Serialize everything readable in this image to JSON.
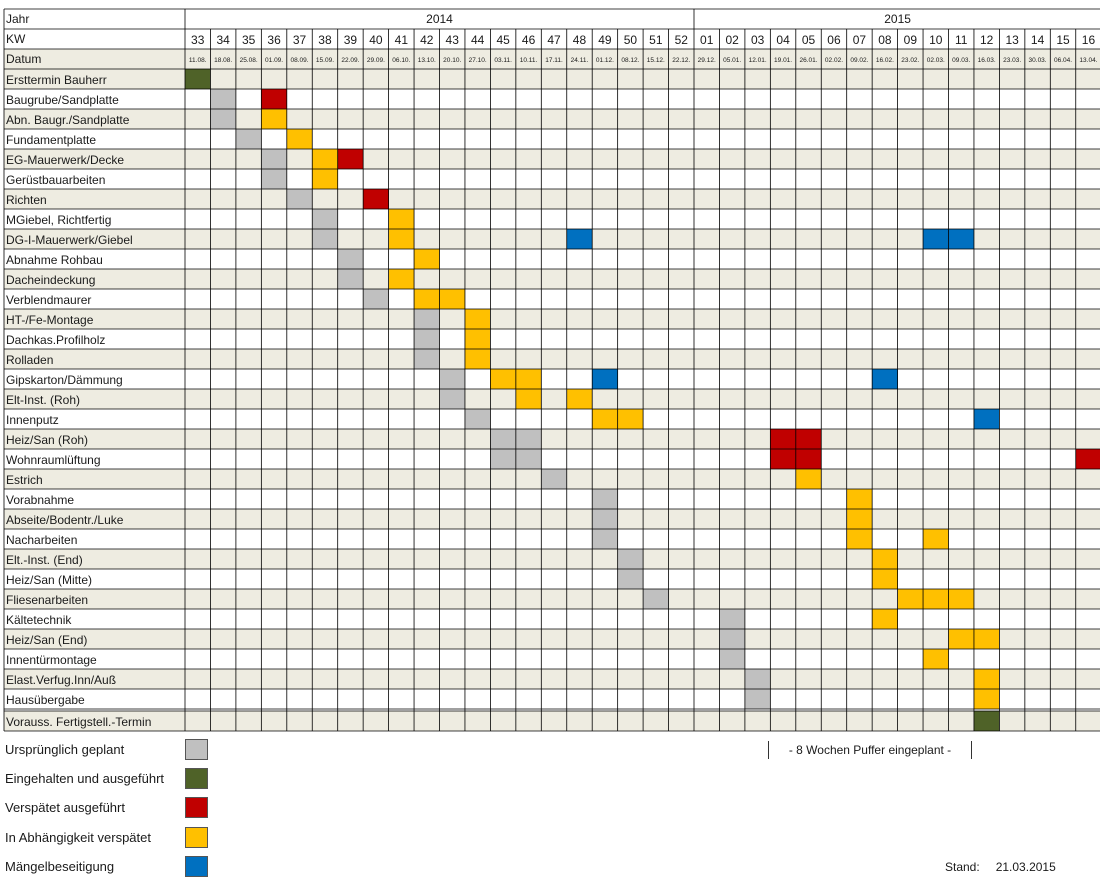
{
  "chart_data": {
    "type": "table",
    "header_labels": {
      "year": "Jahr",
      "week": "KW",
      "date": "Datum"
    },
    "years": [
      {
        "label": "2014",
        "from": 0,
        "to": 19
      },
      {
        "label": "2015",
        "from": 20,
        "to": 35
      }
    ],
    "weeks": [
      "33",
      "34",
      "35",
      "36",
      "37",
      "38",
      "39",
      "40",
      "41",
      "42",
      "43",
      "44",
      "45",
      "46",
      "47",
      "48",
      "49",
      "50",
      "51",
      "52",
      "01",
      "02",
      "03",
      "04",
      "05",
      "06",
      "07",
      "08",
      "09",
      "10",
      "11",
      "12",
      "13",
      "14",
      "15",
      "16"
    ],
    "dates": [
      "11.08.",
      "18.08.",
      "25.08.",
      "01.09.",
      "08.09.",
      "15.09.",
      "22.09.",
      "29.09.",
      "06.10.",
      "13.10.",
      "20.10.",
      "27.10.",
      "03.11.",
      "10.11.",
      "17.11.",
      "24.11.",
      "01.12.",
      "08.12.",
      "15.12.",
      "22.12.",
      "29.12.",
      "05.01.",
      "12.01.",
      "19.01.",
      "26.01.",
      "02.02.",
      "09.02.",
      "16.02.",
      "23.02.",
      "02.03.",
      "09.03.",
      "16.03.",
      "23.03.",
      "30.03.",
      "06.04.",
      "13.04."
    ],
    "statuses": {
      "G": {
        "label": "Ursprünglich geplant",
        "color": "#c0c0c0"
      },
      "D": {
        "label": "Eingehalten und ausgeführt",
        "color": "#4f6228"
      },
      "R": {
        "label": "Verspätet ausgeführt",
        "color": "#c00000"
      },
      "O": {
        "label": "In Abhängigkeit verspätet",
        "color": "#ffc000"
      },
      "B": {
        "label": "Mängelbeseitigung",
        "color": "#0070c0"
      }
    },
    "tasks": [
      {
        "name": "Ersttermin Bauherr",
        "cells": [
          [
            0,
            "D"
          ]
        ]
      },
      {
        "name": "Baugrube/Sandplatte",
        "cells": [
          [
            1,
            "G"
          ],
          [
            3,
            "R"
          ]
        ]
      },
      {
        "name": "Abn. Baugr./Sandplatte",
        "cells": [
          [
            1,
            "G"
          ],
          [
            3,
            "O"
          ]
        ]
      },
      {
        "name": "Fundamentplatte",
        "cells": [
          [
            2,
            "G"
          ],
          [
            4,
            "O"
          ]
        ]
      },
      {
        "name": "EG-Mauerwerk/Decke",
        "cells": [
          [
            3,
            "G"
          ],
          [
            5,
            "O"
          ],
          [
            6,
            "R"
          ]
        ]
      },
      {
        "name": "Gerüstbauarbeiten",
        "cells": [
          [
            3,
            "G"
          ],
          [
            5,
            "O"
          ]
        ]
      },
      {
        "name": "Richten",
        "cells": [
          [
            4,
            "G"
          ],
          [
            7,
            "R"
          ]
        ]
      },
      {
        "name": "MGiebel, Richtfertig",
        "cells": [
          [
            5,
            "G"
          ],
          [
            8,
            "O"
          ]
        ]
      },
      {
        "name": "DG-I-Mauerwerk/Giebel",
        "cells": [
          [
            5,
            "G"
          ],
          [
            8,
            "O"
          ],
          [
            15,
            "B"
          ],
          [
            29,
            "B"
          ],
          [
            30,
            "B"
          ]
        ]
      },
      {
        "name": "Abnahme Rohbau",
        "cells": [
          [
            6,
            "G"
          ],
          [
            9,
            "O"
          ]
        ]
      },
      {
        "name": "Dacheindeckung",
        "cells": [
          [
            6,
            "G"
          ],
          [
            8,
            "O"
          ]
        ]
      },
      {
        "name": "Verblendmaurer",
        "cells": [
          [
            7,
            "G"
          ],
          [
            9,
            "O"
          ],
          [
            10,
            "O"
          ]
        ]
      },
      {
        "name": "HT-/Fe-Montage",
        "cells": [
          [
            9,
            "G"
          ],
          [
            11,
            "O"
          ]
        ]
      },
      {
        "name": "Dachkas.Profilholz",
        "cells": [
          [
            9,
            "G"
          ],
          [
            11,
            "O"
          ]
        ]
      },
      {
        "name": "Rolladen",
        "cells": [
          [
            9,
            "G"
          ],
          [
            11,
            "O"
          ]
        ]
      },
      {
        "name": "Gipskarton/Dämmung",
        "cells": [
          [
            10,
            "G"
          ],
          [
            12,
            "O"
          ],
          [
            13,
            "O"
          ],
          [
            16,
            "B"
          ],
          [
            27,
            "B"
          ]
        ]
      },
      {
        "name": "Elt-Inst. (Roh)",
        "cells": [
          [
            10,
            "G"
          ],
          [
            13,
            "O"
          ],
          [
            15,
            "O"
          ]
        ]
      },
      {
        "name": "Innenputz",
        "cells": [
          [
            11,
            "G"
          ],
          [
            16,
            "O"
          ],
          [
            17,
            "O"
          ],
          [
            31,
            "B"
          ]
        ]
      },
      {
        "name": "Heiz/San (Roh)",
        "cells": [
          [
            12,
            "G"
          ],
          [
            13,
            "G"
          ],
          [
            23,
            "R"
          ],
          [
            24,
            "R"
          ]
        ]
      },
      {
        "name": "Wohnraumlüftung",
        "cells": [
          [
            12,
            "G"
          ],
          [
            13,
            "G"
          ],
          [
            23,
            "R"
          ],
          [
            24,
            "R"
          ],
          [
            35,
            "R"
          ]
        ]
      },
      {
        "name": "Estrich",
        "cells": [
          [
            14,
            "G"
          ],
          [
            24,
            "O"
          ]
        ]
      },
      {
        "name": "Vorabnahme",
        "cells": [
          [
            16,
            "G"
          ],
          [
            26,
            "O"
          ]
        ]
      },
      {
        "name": "Abseite/Bodentr./Luke",
        "cells": [
          [
            16,
            "G"
          ],
          [
            26,
            "O"
          ]
        ]
      },
      {
        "name": "Nacharbeiten",
        "cells": [
          [
            16,
            "G"
          ],
          [
            26,
            "O"
          ],
          [
            29,
            "O"
          ]
        ]
      },
      {
        "name": "Elt.-Inst. (End)",
        "cells": [
          [
            17,
            "G"
          ],
          [
            27,
            "O"
          ]
        ]
      },
      {
        "name": "Heiz/San (Mitte)",
        "cells": [
          [
            17,
            "G"
          ],
          [
            27,
            "O"
          ]
        ]
      },
      {
        "name": "Fliesenarbeiten",
        "cells": [
          [
            18,
            "G"
          ],
          [
            28,
            "O"
          ],
          [
            29,
            "O"
          ],
          [
            30,
            "O"
          ]
        ]
      },
      {
        "name": "Kältetechnik",
        "cells": [
          [
            21,
            "G"
          ],
          [
            27,
            "O"
          ]
        ]
      },
      {
        "name": "Heiz/San (End)",
        "cells": [
          [
            21,
            "G"
          ],
          [
            30,
            "O"
          ],
          [
            31,
            "O"
          ]
        ]
      },
      {
        "name": "Innentürmontage",
        "cells": [
          [
            21,
            "G"
          ],
          [
            29,
            "O"
          ]
        ]
      },
      {
        "name": "Elast.Verfug.Inn/Auß",
        "cells": [
          [
            22,
            "G"
          ],
          [
            31,
            "O"
          ]
        ]
      },
      {
        "name": "Hausübergabe",
        "cells": [
          [
            22,
            "G"
          ],
          [
            31,
            "O"
          ]
        ]
      },
      {
        "name": "Vorauss. Fertigstell.-Termin",
        "cells": [
          [
            31,
            "D"
          ]
        ]
      }
    ]
  },
  "legend": {
    "items": [
      {
        "label": "Ursprünglich geplant",
        "color": "#c0c0c0"
      },
      {
        "label": "Eingehalten und ausgeführt",
        "color": "#4f6228"
      },
      {
        "label": "Verspätet ausgeführt",
        "color": "#c00000"
      },
      {
        "label": "In Abhängigkeit verspätet",
        "color": "#ffc000"
      },
      {
        "label": "Mängelbeseitigung",
        "color": "#0070c0"
      }
    ]
  },
  "buffer_note": "-  8 Wochen Puffer eingeplant  -",
  "stand": {
    "label": "Stand:",
    "date": "21.03.2015"
  },
  "colors": {
    "row_shade": "#eeece1",
    "grid": "#000000"
  }
}
